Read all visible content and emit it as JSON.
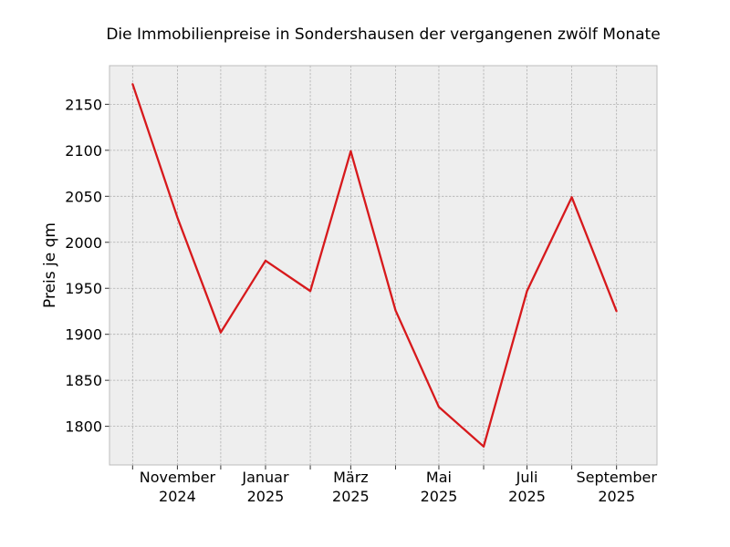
{
  "chart_data": {
    "type": "line",
    "title": "Die Immobilienpreise in Sondershausen der vergangenen zwölf Monate",
    "xlabel": "",
    "ylabel": "Preis je qm",
    "x": [
      "2024-10",
      "2024-11",
      "2024-12",
      "2025-01",
      "2025-02",
      "2025-03",
      "2025-04",
      "2025-05",
      "2025-06",
      "2025-07",
      "2025-08",
      "2025-09"
    ],
    "series": [
      {
        "values": [
          2172,
          2027,
          1902,
          1980,
          1947,
          2099,
          1926,
          1821,
          1778,
          1947,
          2049,
          1925
        ]
      }
    ],
    "x_ticks": [
      {
        "x": "2024-10",
        "label": []
      },
      {
        "x": "2024-11",
        "label": [
          "November",
          "2024"
        ]
      },
      {
        "x": "2024-12",
        "label": []
      },
      {
        "x": "2025-01",
        "label": [
          "Januar",
          "2025"
        ]
      },
      {
        "x": "2025-02",
        "label": []
      },
      {
        "x": "2025-03",
        "label": [
          "März",
          "2025"
        ]
      },
      {
        "x": "2025-04",
        "label": []
      },
      {
        "x": "2025-05",
        "label": [
          "Mai",
          "2025"
        ]
      },
      {
        "x": "2025-06",
        "label": []
      },
      {
        "x": "2025-07",
        "label": [
          "Juli",
          "2025"
        ]
      },
      {
        "x": "2025-08",
        "label": []
      },
      {
        "x": "2025-09",
        "label": [
          "September",
          "2025"
        ]
      }
    ],
    "y_ticks": [
      1800,
      1850,
      1900,
      1950,
      2000,
      2050,
      2100,
      2150
    ],
    "ylim": [
      1758,
      2192
    ],
    "xlim": [
      "2024-09-15",
      "2025-09-29"
    ],
    "grid": true,
    "colors": {
      "line": "#d7191c",
      "plot_bg": "#eeeeee",
      "grid": "#b0b0b0",
      "frame": "#bcbcbc"
    }
  }
}
